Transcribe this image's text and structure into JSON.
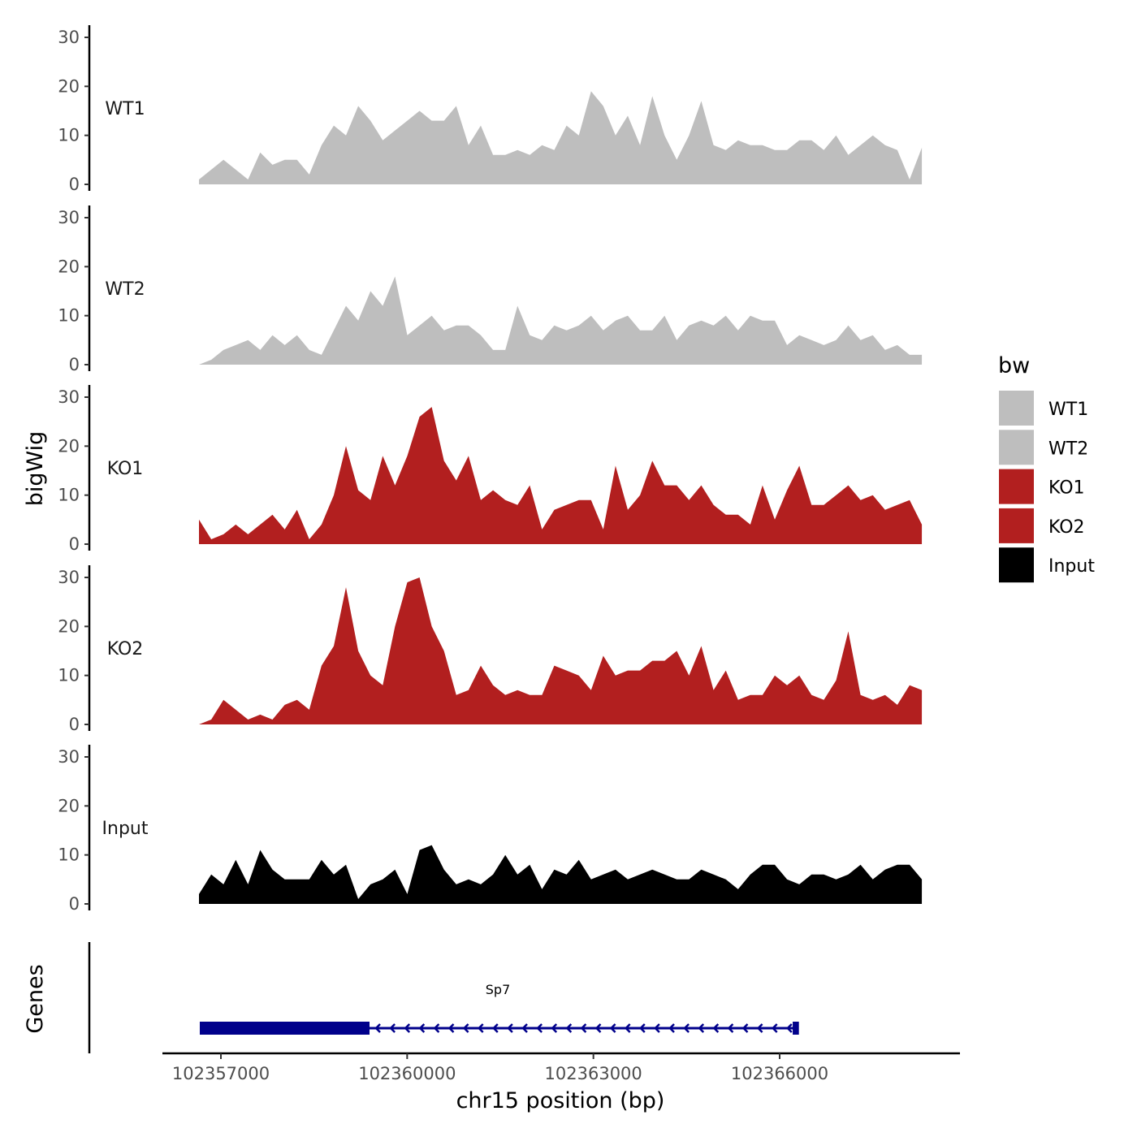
{
  "chart_data": {
    "type": "area",
    "xlabel": "chr15 position (bp)",
    "ylabel": "bigWig",
    "genes_label": "Genes",
    "xlim": [
      102356647,
      102368290
    ],
    "x_ticks": [
      102357000,
      102360000,
      102363000,
      102366000
    ],
    "x_tick_labels": [
      "102357000",
      "102360000",
      "102363000",
      "102366000"
    ],
    "ylim": [
      0,
      30
    ],
    "y_ticks": [
      0,
      10,
      20,
      30
    ],
    "y_tick_labels": [
      "0",
      "10",
      "20",
      "30"
    ],
    "sampling": {
      "start": 102356647,
      "end": 102368290,
      "points": 60
    },
    "legend": {
      "title": "bw",
      "placement": "right",
      "entries": [
        {
          "label": "WT1",
          "color": "#bebebe"
        },
        {
          "label": "WT2",
          "color": "#bebebe"
        },
        {
          "label": "KO1",
          "color": "#b21f1f"
        },
        {
          "label": "KO2",
          "color": "#b21f1f"
        },
        {
          "label": "Input",
          "color": "#000000"
        }
      ]
    },
    "series": [
      {
        "name": "WT1",
        "color": "#bebebe",
        "values": [
          1,
          3,
          5,
          3,
          1,
          6.5,
          4,
          5,
          5,
          2,
          8,
          12,
          10,
          16,
          13,
          9,
          11,
          13,
          15,
          13,
          13,
          16,
          8,
          12,
          6,
          6,
          7,
          6,
          8,
          7,
          12,
          10,
          19,
          16,
          10,
          14,
          8,
          18,
          10,
          5,
          10,
          17,
          8,
          7,
          9,
          8,
          8,
          7,
          7,
          9,
          9,
          7,
          10,
          6,
          8,
          10,
          8,
          7,
          1,
          7.5
        ]
      },
      {
        "name": "WT2",
        "color": "#bebebe",
        "values": [
          0,
          1,
          3,
          4,
          5,
          3,
          6,
          4,
          6,
          3,
          2,
          7,
          12,
          9,
          15,
          12,
          18,
          6,
          8,
          10,
          7,
          8,
          8,
          6,
          3,
          3,
          12,
          6,
          5,
          8,
          7,
          8,
          10,
          7,
          9,
          10,
          7,
          7,
          10,
          5,
          8,
          9,
          8,
          10,
          7,
          10,
          9,
          9,
          4,
          6,
          5,
          4,
          5,
          8,
          5,
          6,
          3,
          4,
          2,
          2
        ]
      },
      {
        "name": "KO1",
        "color": "#b21f1f",
        "values": [
          5,
          1,
          2,
          4,
          2,
          4,
          6,
          3,
          7,
          1,
          4,
          10,
          20,
          11,
          9,
          18,
          12,
          18,
          26,
          28,
          17,
          13,
          18,
          9,
          11,
          9,
          8,
          12,
          3,
          7,
          8,
          9,
          9,
          3,
          16,
          7,
          10,
          17,
          12,
          12,
          9,
          12,
          8,
          6,
          6,
          4,
          12,
          5,
          11,
          16,
          8,
          8,
          10,
          12,
          9,
          10,
          7,
          8,
          9,
          4
        ]
      },
      {
        "name": "KO2",
        "color": "#b21f1f",
        "values": [
          0,
          1,
          5,
          3,
          1,
          2,
          1,
          4,
          5,
          3,
          12,
          16,
          28,
          15,
          10,
          8,
          20,
          29,
          30,
          20,
          15,
          6,
          7,
          12,
          8,
          6,
          7,
          6,
          6,
          12,
          11,
          10,
          7,
          14,
          10,
          11,
          11,
          13,
          13,
          15,
          10,
          16,
          7,
          11,
          5,
          6,
          6,
          10,
          8,
          10,
          6,
          5,
          9,
          19,
          6,
          5,
          6,
          4,
          8,
          7
        ]
      },
      {
        "name": "Input",
        "color": "#000000",
        "values": [
          2,
          6,
          4,
          9,
          4,
          11,
          7,
          5,
          5,
          5,
          9,
          6,
          8,
          1,
          4,
          5,
          7,
          2,
          11,
          12,
          7,
          4,
          5,
          4,
          6,
          10,
          6,
          8,
          3,
          7,
          6,
          9,
          5,
          6,
          7,
          5,
          6,
          7,
          6,
          5,
          5,
          7,
          6,
          5,
          3,
          6,
          8,
          8,
          5,
          4,
          6,
          6,
          5,
          6,
          8,
          5,
          7,
          8,
          8,
          5
        ]
      }
    ],
    "genes": [
      {
        "name": "Sp7",
        "strand": "-",
        "color": "#00008b",
        "start": 102356660,
        "end": 102366262,
        "exons": [
          [
            102356660,
            102359394
          ],
          [
            102366210,
            102366310
          ]
        ]
      }
    ]
  }
}
